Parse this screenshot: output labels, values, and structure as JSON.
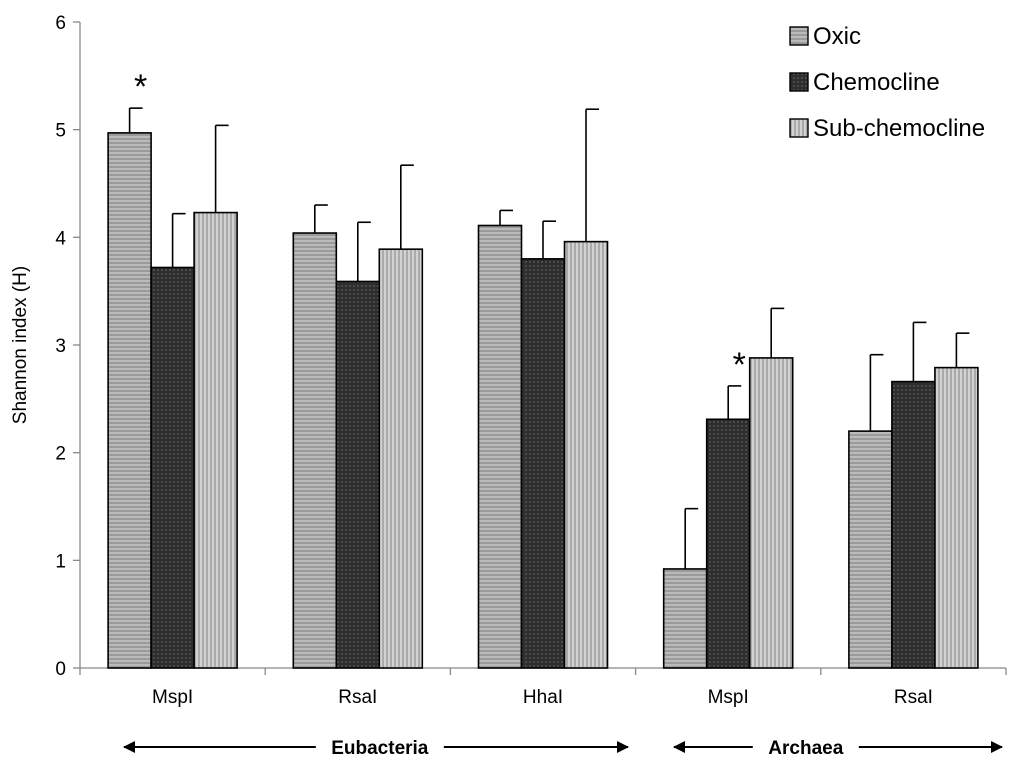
{
  "chart_data": {
    "type": "bar",
    "categories": [
      "MspI",
      "RsaI",
      "HhaI",
      "MspI",
      "RsaI"
    ],
    "series": [
      {
        "name": "Oxic",
        "values": [
          4.97,
          4.04,
          4.11,
          0.92,
          2.2
        ],
        "errors": [
          0.23,
          0.26,
          0.14,
          0.56,
          0.71
        ],
        "fill": "#9a9a9a",
        "pattern": "horizontal"
      },
      {
        "name": "Chemocline",
        "values": [
          3.72,
          3.59,
          3.8,
          2.31,
          2.66
        ],
        "errors": [
          0.5,
          0.55,
          0.35,
          0.31,
          0.55
        ],
        "fill": "#3a3a3a",
        "pattern": "dots"
      },
      {
        "name": "Sub-chemocline",
        "values": [
          4.23,
          3.89,
          3.96,
          2.88,
          2.79
        ],
        "errors": [
          0.81,
          0.78,
          1.23,
          0.46,
          0.32
        ],
        "fill": "#a8a8a8",
        "pattern": "vertical"
      }
    ],
    "ylabel": "Shannon index (H)",
    "xlabel": "",
    "ylim": [
      0,
      6
    ],
    "yticks": [
      "0",
      "1",
      "2",
      "3",
      "4",
      "5",
      "6"
    ],
    "annotations": [
      "*",
      "*"
    ],
    "annotation_categories": [
      0,
      3
    ],
    "groups": [
      {
        "label": "Eubacteria",
        "categories": [
          0,
          1,
          2
        ]
      },
      {
        "label": "Archaea",
        "categories": [
          3,
          4
        ]
      }
    ],
    "legend_position": "top-right",
    "grid": false
  }
}
